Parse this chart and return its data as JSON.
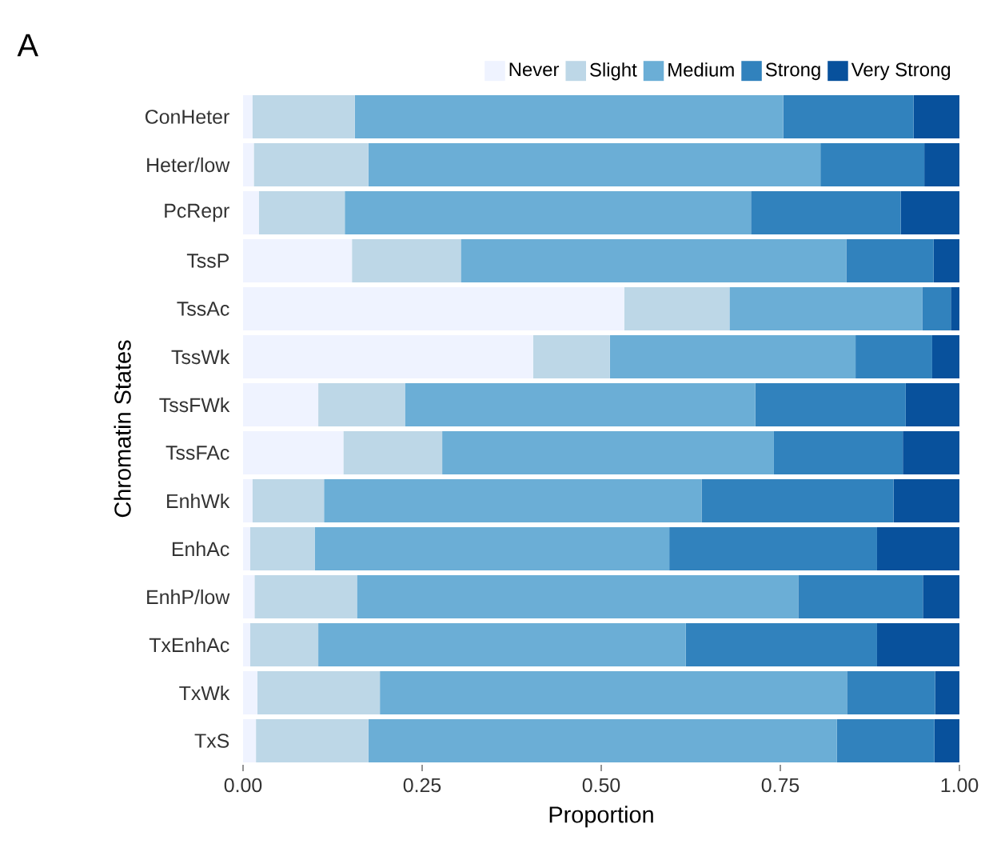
{
  "chart_data": {
    "type": "bar",
    "orientation": "horizontal",
    "stacked": true,
    "title": "A",
    "xlabel": "Proportion",
    "ylabel": "Chromatin States",
    "categories": [
      "ConHeter",
      "Heter/low",
      "PcRepr",
      "TssP",
      "TssAc",
      "TssWk",
      "TssFWk",
      "TssFAc",
      "EnhWk",
      "EnhAc",
      "EnhP/low",
      "TxEnhAc",
      "TxWk",
      "TxS"
    ],
    "series": [
      {
        "name": "Never",
        "color": "#eff3ff",
        "values": [
          0.013,
          0.015,
          0.022,
          0.152,
          0.532,
          0.405,
          0.105,
          0.14,
          0.013,
          0.01,
          0.016,
          0.01,
          0.02,
          0.018
        ]
      },
      {
        "name": "Slight",
        "color": "#bdd7e7",
        "values": [
          0.143,
          0.16,
          0.12,
          0.152,
          0.147,
          0.107,
          0.121,
          0.138,
          0.1,
          0.09,
          0.143,
          0.095,
          0.171,
          0.157
        ]
      },
      {
        "name": "Medium",
        "color": "#6baed6",
        "values": [
          0.598,
          0.631,
          0.567,
          0.538,
          0.269,
          0.343,
          0.489,
          0.463,
          0.527,
          0.495,
          0.616,
          0.513,
          0.652,
          0.654
        ]
      },
      {
        "name": "Strong",
        "color": "#3182bd",
        "values": [
          0.182,
          0.145,
          0.209,
          0.122,
          0.04,
          0.107,
          0.21,
          0.18,
          0.268,
          0.29,
          0.174,
          0.267,
          0.123,
          0.136
        ]
      },
      {
        "name": "Very Strong",
        "color": "#08519c",
        "values": [
          0.064,
          0.049,
          0.082,
          0.036,
          0.012,
          0.038,
          0.075,
          0.079,
          0.092,
          0.115,
          0.051,
          0.115,
          0.034,
          0.035
        ]
      }
    ],
    "xlim": [
      0,
      1
    ],
    "xticks": [
      {
        "value": 0,
        "label": "0.00"
      },
      {
        "value": 0.25,
        "label": "0.25"
      },
      {
        "value": 0.5,
        "label": "0.50"
      },
      {
        "value": 0.75,
        "label": "0.75"
      },
      {
        "value": 1,
        "label": "1.00"
      }
    ],
    "legend": "top"
  }
}
